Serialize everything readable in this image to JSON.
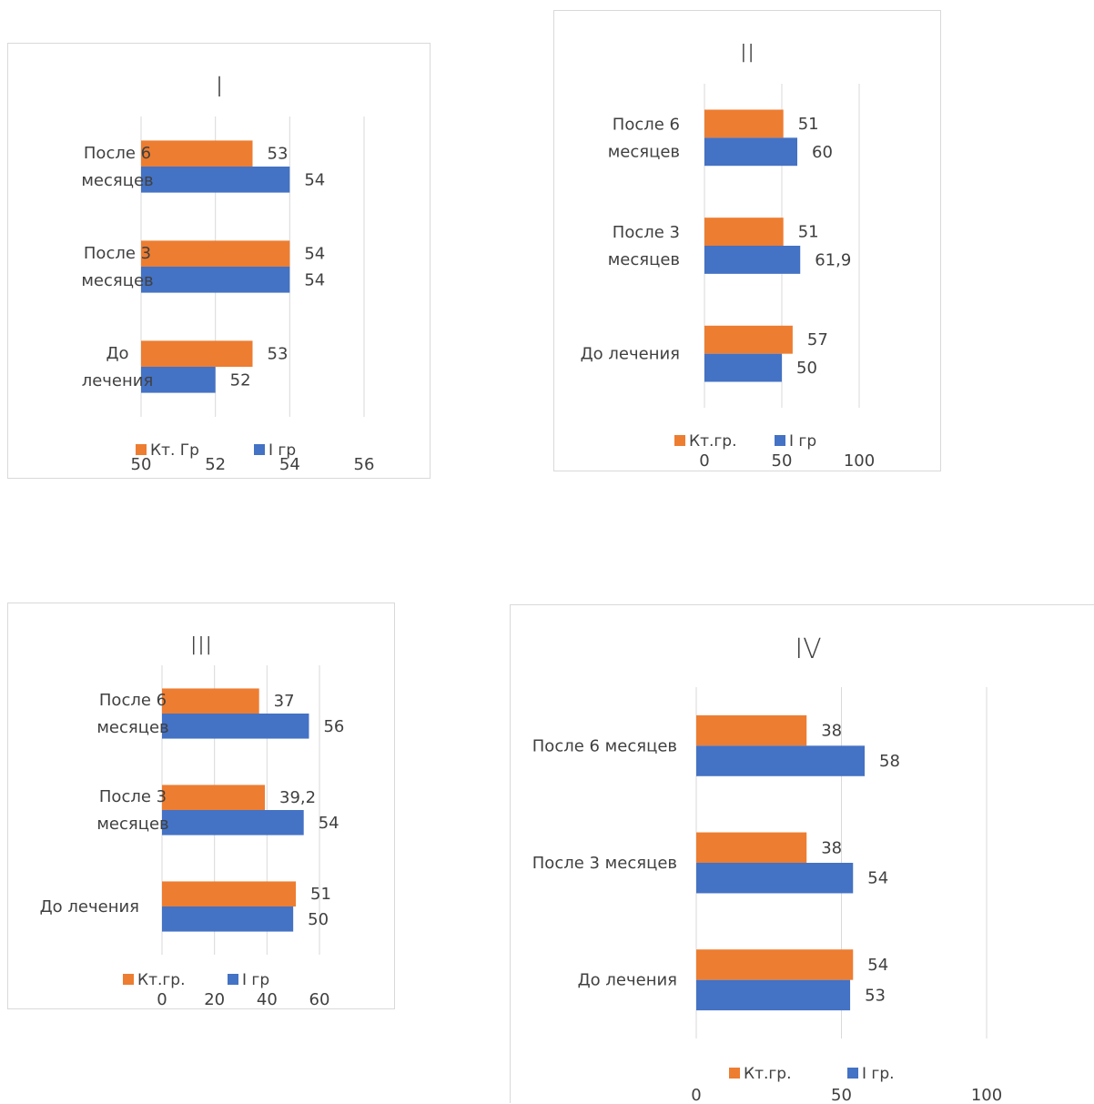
{
  "colors": {
    "control": "#ED7D31",
    "group": "#4472C4",
    "grid": "#d9d9d9",
    "text": "#404040"
  },
  "chart_data": [
    {
      "type": "bar",
      "orientation": "horizontal",
      "title": "I",
      "categories": [
        "До лечения",
        "После 3 месяцев",
        "После 6 месяцев"
      ],
      "category_labels": [
        [
          "До",
          "лечения"
        ],
        [
          "После 3",
          "месяцев"
        ],
        [
          "После 6",
          "месяцев"
        ]
      ],
      "series": [
        {
          "name": "Кт. Гр",
          "color": "#ED7D31",
          "values": [
            53,
            54,
            53
          ],
          "labels": [
            "53",
            "54",
            "53"
          ]
        },
        {
          "name": "I гр",
          "color": "#4472C4",
          "values": [
            52,
            54,
            54
          ],
          "labels": [
            "52",
            "54",
            "54"
          ]
        }
      ],
      "xlim": [
        50,
        56
      ],
      "xticks": [
        "50",
        "52",
        "54",
        "56"
      ],
      "grid": true,
      "legend": "bottom"
    },
    {
      "type": "bar",
      "orientation": "horizontal",
      "title": "II",
      "categories": [
        "До лечения",
        "После 3 месяцев",
        "После 6 месяцев"
      ],
      "category_labels": [
        [
          "До лечения"
        ],
        [
          "После 3",
          "месяцев"
        ],
        [
          "После 6",
          "месяцев"
        ]
      ],
      "series": [
        {
          "name": "Кт.гр.",
          "color": "#ED7D31",
          "values": [
            57,
            51,
            51
          ],
          "labels": [
            "57",
            "51",
            "51"
          ]
        },
        {
          "name": "I гр",
          "color": "#4472C4",
          "values": [
            50,
            61.9,
            60
          ],
          "labels": [
            "50",
            "61,9",
            "60"
          ]
        }
      ],
      "xlim": [
        0,
        100
      ],
      "xticks": [
        "0",
        "50",
        "100"
      ],
      "grid": true,
      "legend": "bottom"
    },
    {
      "type": "bar",
      "orientation": "horizontal",
      "title": "III",
      "categories": [
        "До лечения",
        "После 3 месяцев",
        "После 6 месяцев"
      ],
      "category_labels": [
        [
          "До лечения"
        ],
        [
          "После 3",
          "месяцев"
        ],
        [
          "После 6",
          "месяцев"
        ]
      ],
      "series": [
        {
          "name": "Кт.гр.",
          "color": "#ED7D31",
          "values": [
            51,
            39.2,
            37
          ],
          "labels": [
            "51",
            "39,2",
            "37"
          ]
        },
        {
          "name": "I гр",
          "color": "#4472C4",
          "values": [
            50,
            54,
            56
          ],
          "labels": [
            "50",
            "54",
            "56"
          ]
        }
      ],
      "xlim": [
        0,
        60
      ],
      "xticks": [
        "0",
        "20",
        "40",
        "60"
      ],
      "grid": true,
      "legend": "bottom"
    },
    {
      "type": "bar",
      "orientation": "horizontal",
      "title": "IV",
      "categories": [
        "До лечения",
        "После 3 месяцев",
        "После 6 месяцев"
      ],
      "category_labels": [
        [
          "До лечения"
        ],
        [
          "После 3 месяцев"
        ],
        [
          "После 6 месяцев"
        ]
      ],
      "series": [
        {
          "name": "Кт.гр.",
          "color": "#ED7D31",
          "values": [
            54,
            38,
            38
          ],
          "labels": [
            "54",
            "38",
            "38"
          ]
        },
        {
          "name": "I гр.",
          "color": "#4472C4",
          "values": [
            53,
            54,
            58
          ],
          "labels": [
            "53",
            "54",
            "58"
          ]
        }
      ],
      "xlim": [
        0,
        100
      ],
      "xticks": [
        "0",
        "50",
        "100"
      ],
      "grid": true,
      "legend": "bottom"
    }
  ]
}
